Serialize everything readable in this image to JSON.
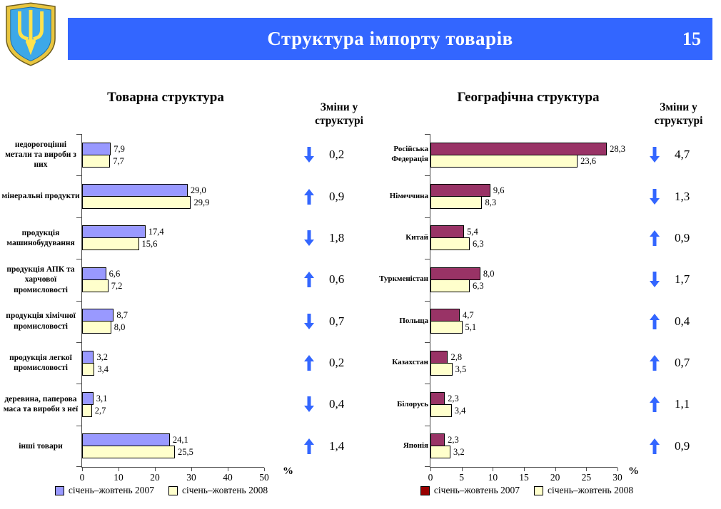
{
  "header": {
    "title": "Структура імпорту товарів",
    "page_number": "15",
    "bar_color": "#3366FF",
    "emblem": "ukraine-coat-of-arms"
  },
  "changes_left": {
    "header": "Зміни у структурі",
    "arrow_color": "#3366FF",
    "rows": [
      {
        "direction": "down",
        "value": 0.2
      },
      {
        "direction": "up",
        "value": 0.9
      },
      {
        "direction": "down",
        "value": 1.8
      },
      {
        "direction": "up",
        "value": 0.6
      },
      {
        "direction": "down",
        "value": 0.7
      },
      {
        "direction": "up",
        "value": 0.2
      },
      {
        "direction": "down",
        "value": 0.4
      },
      {
        "direction": "up",
        "value": 1.4
      }
    ]
  },
  "changes_right": {
    "header": "Зміни у структурі",
    "arrow_color": "#3366FF",
    "rows": [
      {
        "direction": "down",
        "value": 4.7
      },
      {
        "direction": "down",
        "value": 1.3
      },
      {
        "direction": "up",
        "value": 0.9
      },
      {
        "direction": "down",
        "value": 1.7
      },
      {
        "direction": "up",
        "value": 0.4
      },
      {
        "direction": "up",
        "value": 0.7
      },
      {
        "direction": "up",
        "value": 1.1
      },
      {
        "direction": "up",
        "value": 0.9
      }
    ]
  },
  "chart_data": [
    {
      "type": "bar",
      "orientation": "horizontal",
      "title": "Товарна структура",
      "categories": [
        "недорогоцінні метали та вироби з них",
        "мінеральні продукти",
        "продукція машинобудування",
        "продукція АПК та харчової промисловості",
        "продукція хімічної промисловості",
        "продукція легкої промисловості",
        "деревина, паперова маса та вироби з неї",
        "інші товари"
      ],
      "series": [
        {
          "name": "січень–жовтень 2007",
          "color": "#9999FF",
          "legend_color": "#9999FF",
          "values": [
            7.9,
            29.0,
            17.4,
            6.6,
            8.7,
            3.2,
            3.1,
            24.1
          ]
        },
        {
          "name": "січень–жовтень 2008",
          "color": "#FFFFCC",
          "legend_color": "#FFFFCC",
          "values": [
            7.7,
            29.9,
            15.6,
            7.2,
            8.0,
            3.4,
            2.7,
            25.5
          ]
        }
      ],
      "xlim": [
        0,
        50
      ],
      "x_ticks": [
        0,
        10,
        20,
        30,
        40,
        50
      ],
      "x_unit": "%",
      "decimal_separator": ",",
      "value_label_decimals": 1,
      "legend_position": "bottom",
      "grid": false
    },
    {
      "type": "bar",
      "orientation": "horizontal",
      "title": "Географічна структура",
      "categories": [
        "Російська Федерація",
        "Німеччина",
        "Китай",
        "Туркменістан",
        "Польща",
        "Казахстан",
        "Білорусь",
        "Японія"
      ],
      "series": [
        {
          "name": "січень–жовтень 2007",
          "color": "#993366",
          "legend_color": "#990000",
          "values": [
            28.3,
            9.6,
            5.4,
            8.0,
            4.7,
            2.8,
            2.3,
            2.3
          ]
        },
        {
          "name": "січень–жовтень 2008",
          "color": "#FFFFCC",
          "legend_color": "#FFFFCC",
          "values": [
            23.6,
            8.3,
            6.3,
            6.3,
            5.1,
            3.5,
            3.4,
            3.2
          ]
        }
      ],
      "xlim": [
        0,
        30
      ],
      "x_ticks": [
        0,
        5,
        10,
        15,
        20,
        25,
        30
      ],
      "x_unit": "%",
      "decimal_separator": ",",
      "value_label_decimals": 1,
      "legend_position": "bottom",
      "grid": false
    }
  ]
}
